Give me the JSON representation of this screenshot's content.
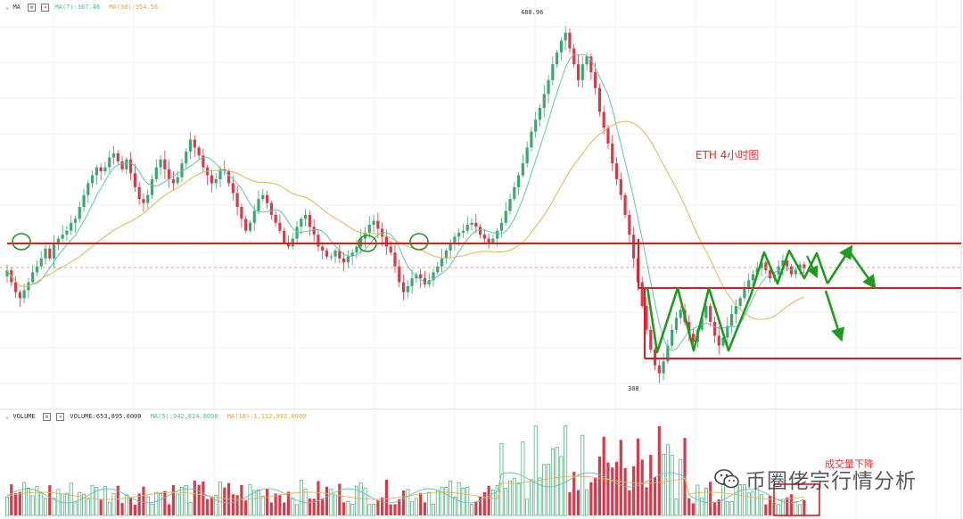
{
  "colors": {
    "up": "#3aa871",
    "down": "#d83a4b",
    "ma7": "#60c3b0",
    "ma30": "#e2b45a",
    "level": "#e0191f",
    "arrow": "#1e9b1e",
    "circle": "#2a8f2a",
    "grid": "#eef2f6"
  },
  "header": {
    "price_indicator": "MA",
    "ma7_label": "MA(7):367.48",
    "ma30_label": "MA(30):354.58",
    "volume_indicator": "VOLUME",
    "volume_label": "VOLUME:653,895.0000",
    "vol_ma5_label": "MA(5):942,814.8000",
    "vol_ma10_label": "MA(10):1,112,992.0000"
  },
  "annotations": {
    "high_price": "488.96",
    "low_price": "308",
    "title": "ETH 4小时图",
    "volume_note": "成交量下降"
  },
  "watermark": {
    "text": "币圈佬宗行情分析",
    "icon": "wechat-icon"
  },
  "chart_data": [
    {
      "type": "candlestick",
      "title": "ETH 4小时图",
      "ylim": [
        308,
        488.96
      ],
      "ma_labels": [
        "MA(7):367.48",
        "MA(30):354.58"
      ],
      "key_prices": {
        "high": 488.96,
        "low": 308
      },
      "closes_approx": [
        366,
        360,
        355,
        352,
        356,
        360,
        365,
        368,
        372,
        377,
        372,
        379,
        382,
        384,
        386,
        390,
        392,
        398,
        404,
        410,
        414,
        418,
        416,
        418,
        423,
        425,
        421,
        417,
        422,
        415,
        408,
        402,
        400,
        404,
        412,
        418,
        422,
        417,
        412,
        410,
        413,
        420,
        426,
        432,
        428,
        424,
        418,
        414,
        410,
        412,
        417,
        416,
        410,
        405,
        398,
        392,
        386,
        390,
        396,
        402,
        404,
        400,
        394,
        390,
        386,
        380,
        378,
        382,
        388,
        392,
        394,
        388,
        384,
        378,
        376,
        373,
        373,
        376,
        372,
        370,
        373,
        375,
        378,
        382,
        385,
        389,
        391,
        387,
        383,
        378,
        375,
        368,
        360,
        355,
        358,
        362,
        364,
        362,
        359,
        361,
        365,
        368,
        372,
        376,
        380,
        383,
        385,
        386,
        389,
        390,
        388,
        384,
        382,
        380,
        382,
        386,
        390,
        396,
        402,
        408,
        414,
        420,
        428,
        436,
        442,
        448,
        455,
        462,
        470,
        476,
        482,
        486,
        478,
        470,
        462,
        470,
        474,
        466,
        458,
        446,
        438,
        430,
        420,
        412,
        404,
        394,
        384,
        372,
        360,
        348,
        336,
        326,
        318,
        314,
        320,
        328,
        336,
        342,
        346,
        340,
        334,
        330,
        336,
        342,
        348,
        340,
        333,
        328,
        332,
        338,
        344,
        348,
        352,
        357,
        361,
        364,
        367,
        370,
        366,
        362,
        364,
        368,
        371,
        368,
        364,
        366,
        369,
        367
      ],
      "levels": [
        {
          "price": 358,
          "label": "support"
        },
        {
          "price": 358,
          "label": "resistance"
        },
        {
          "price": 342,
          "label": "range-mid"
        },
        {
          "price": 318,
          "label": "range-low"
        }
      ]
    },
    {
      "type": "bar",
      "title": "VOLUME",
      "labels": [
        "VOLUME:653,895.0000",
        "MA(5):942,814.8000",
        "MA(10):1,112,992.0000"
      ],
      "note": "成交量下降"
    }
  ]
}
